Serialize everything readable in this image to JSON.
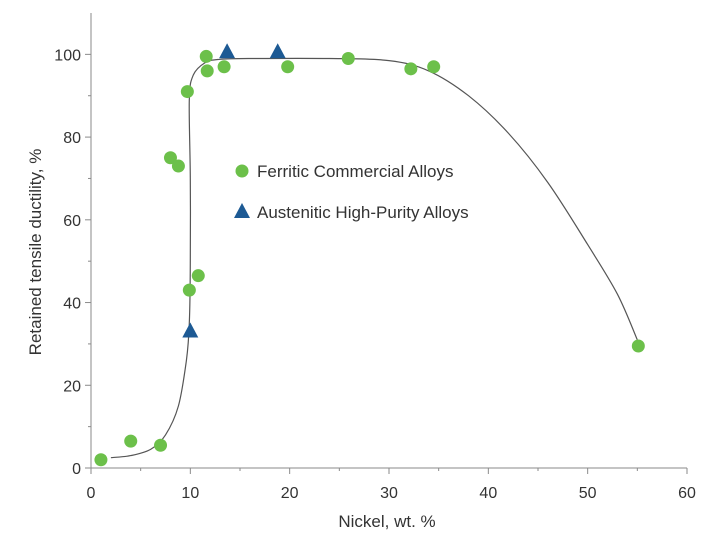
{
  "chart_data": {
    "type": "scatter",
    "xlabel": "Nickel, wt. %",
    "ylabel": "Retained tensile ductility, %",
    "xlim": [
      0,
      60
    ],
    "ylim": [
      0,
      110
    ],
    "x_ticks": [
      0,
      10,
      20,
      30,
      40,
      50,
      60
    ],
    "y_ticks": [
      0,
      20,
      40,
      60,
      80,
      100
    ],
    "grid": false,
    "legend_position": "center-left",
    "series": [
      {
        "name": "Ferritic Commercial Alloys",
        "marker": "circle",
        "color": "#6cc04a",
        "points": [
          [
            1,
            2
          ],
          [
            4,
            6.5
          ],
          [
            7,
            5.5
          ],
          [
            8,
            75
          ],
          [
            8.8,
            73
          ],
          [
            9.7,
            91
          ],
          [
            9.9,
            43
          ],
          [
            10.8,
            46.5
          ],
          [
            11.6,
            99.5
          ],
          [
            11.7,
            96
          ],
          [
            13.4,
            97
          ],
          [
            19.8,
            97
          ],
          [
            25.9,
            99
          ],
          [
            32.2,
            96.5
          ],
          [
            34.5,
            97
          ],
          [
            55.1,
            29.5
          ]
        ]
      },
      {
        "name": "Austenitic High-Purity Alloys",
        "marker": "triangle",
        "color": "#1d5a94",
        "points": [
          [
            10,
            33
          ],
          [
            13.7,
            100.5
          ],
          [
            18.8,
            100.5
          ]
        ]
      }
    ],
    "trend_curve": {
      "color": "#555555",
      "points": [
        [
          2,
          2.5
        ],
        [
          4,
          3
        ],
        [
          6,
          4.5
        ],
        [
          7.5,
          8
        ],
        [
          8.8,
          15
        ],
        [
          9.6,
          26
        ],
        [
          9.9,
          35
        ],
        [
          10,
          50
        ],
        [
          10,
          70
        ],
        [
          9.9,
          89
        ],
        [
          10.3,
          95
        ],
        [
          11.5,
          98
        ],
        [
          13,
          98.8
        ],
        [
          16,
          99
        ],
        [
          24,
          99
        ],
        [
          30,
          98.5
        ],
        [
          34,
          96
        ],
        [
          38,
          90
        ],
        [
          42,
          81
        ],
        [
          46,
          69
        ],
        [
          50,
          54
        ],
        [
          53,
          42
        ],
        [
          55,
          31
        ]
      ]
    }
  }
}
